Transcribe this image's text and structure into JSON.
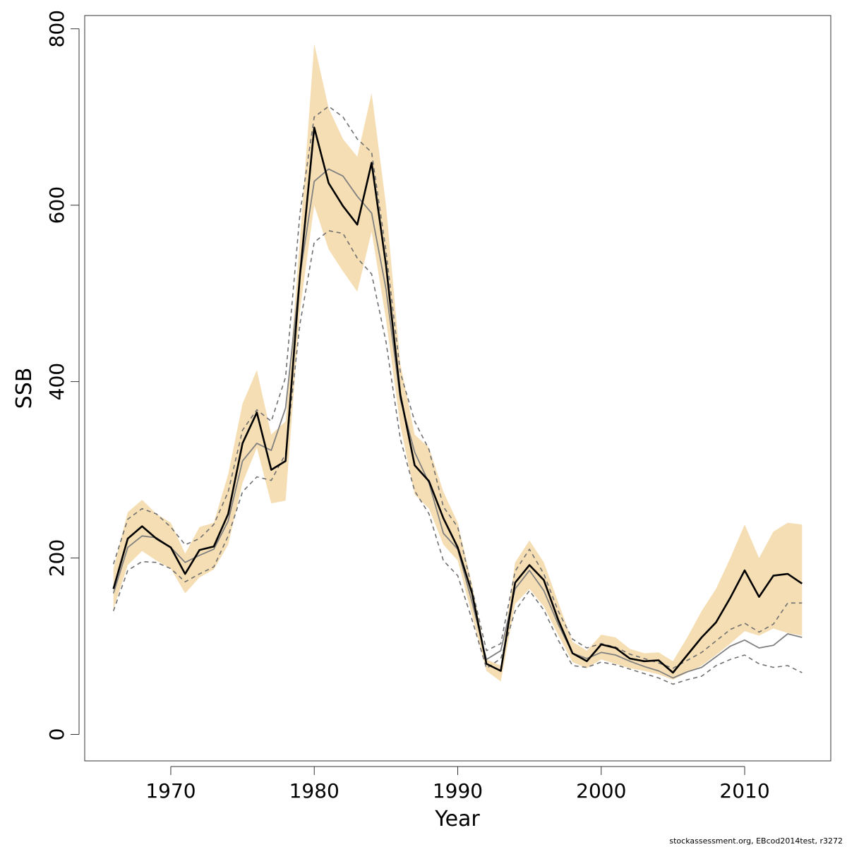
{
  "chart_data": {
    "type": "line",
    "title": "",
    "xlabel": "Year",
    "ylabel": "SSB",
    "xlim": [
      1964,
      2016
    ],
    "ylim": [
      -30,
      815
    ],
    "x_ticks": [
      1970,
      1980,
      1990,
      2000,
      2010
    ],
    "y_ticks": [
      0,
      200,
      400,
      600,
      800
    ],
    "x_tick_labels": [
      "1970",
      "1980",
      "1990",
      "2000",
      "2010"
    ],
    "y_tick_labels": [
      "0",
      "200",
      "400",
      "600",
      "800"
    ],
    "grid": false,
    "legend": "none",
    "footer": "stockassessment.org, EBcod2014test, r3272",
    "colors": {
      "band": "#f5deb3",
      "estimate": "#000000",
      "comparison": "#808080",
      "comparison_bounds": "#707070"
    },
    "x": [
      1966,
      1967,
      1968,
      1969,
      1970,
      1971,
      1972,
      1973,
      1974,
      1975,
      1976,
      1977,
      1978,
      1979,
      1980,
      1981,
      1982,
      1983,
      1984,
      1985,
      1986,
      1987,
      1988,
      1989,
      1990,
      1991,
      1992,
      1993,
      1994,
      1995,
      1996,
      1997,
      1998,
      1999,
      2000,
      2001,
      2002,
      2003,
      2004,
      2005,
      2006,
      2007,
      2008,
      2009,
      2010,
      2011,
      2012,
      2013,
      2014
    ],
    "series": [
      {
        "role": "band",
        "upper": [
          188,
          252,
          266,
          250,
          240,
          205,
          235,
          240,
          295,
          375,
          413,
          340,
          355,
          560,
          783,
          710,
          675,
          655,
          727,
          600,
          420,
          340,
          325,
          275,
          240,
          170,
          85,
          78,
          195,
          220,
          195,
          150,
          105,
          95,
          113,
          110,
          97,
          92,
          93,
          83,
          110,
          140,
          165,
          200,
          238,
          200,
          230,
          240,
          238
        ],
        "lower": [
          142,
          192,
          208,
          197,
          188,
          160,
          178,
          187,
          215,
          285,
          325,
          262,
          265,
          480,
          600,
          550,
          525,
          502,
          570,
          470,
          350,
          272,
          256,
          215,
          197,
          135,
          72,
          60,
          148,
          165,
          145,
          113,
          82,
          75,
          85,
          80,
          75,
          72,
          68,
          62,
          70,
          78,
          90,
          103,
          117,
          112,
          120,
          115,
          112
        ]
      },
      {
        "role": "estimate",
        "values": [
          165,
          222,
          236,
          222,
          212,
          182,
          209,
          213,
          250,
          330,
          365,
          300,
          310,
          520,
          688,
          625,
          599,
          578,
          648,
          532,
          385,
          305,
          287,
          245,
          212,
          160,
          80,
          72,
          172,
          192,
          175,
          130,
          92,
          83,
          102,
          98,
          86,
          83,
          84,
          70,
          90,
          110,
          127,
          155,
          186,
          156,
          180,
          182,
          171
        ]
      },
      {
        "role": "comparison",
        "values": [
          160,
          212,
          225,
          223,
          212,
          195,
          203,
          210,
          242,
          310,
          330,
          322,
          370,
          520,
          627,
          641,
          633,
          610,
          591,
          505,
          380,
          320,
          285,
          228,
          210,
          150,
          85,
          95,
          165,
          186,
          163,
          125,
          92,
          86,
          93,
          90,
          83,
          77,
          72,
          64,
          71,
          76,
          88,
          100,
          107,
          98,
          101,
          114,
          110
        ]
      },
      {
        "role": "comparison-upper",
        "values": [
          193,
          244,
          256,
          250,
          235,
          215,
          222,
          238,
          275,
          345,
          368,
          355,
          405,
          590,
          700,
          712,
          700,
          675,
          660,
          548,
          410,
          355,
          323,
          258,
          235,
          165,
          95,
          103,
          185,
          210,
          182,
          140,
          108,
          98,
          103,
          99,
          91,
          86,
          81,
          75,
          84,
          93,
          106,
          119,
          126,
          116,
          125,
          149,
          149
        ]
      },
      {
        "role": "comparison-lower",
        "values": [
          140,
          186,
          196,
          195,
          188,
          173,
          182,
          190,
          225,
          275,
          292,
          288,
          318,
          465,
          558,
          571,
          568,
          540,
          522,
          445,
          335,
          276,
          250,
          197,
          180,
          130,
          75,
          86,
          140,
          163,
          141,
          107,
          78,
          76,
          82,
          79,
          74,
          69,
          64,
          57,
          62,
          66,
          78,
          85,
          90,
          80,
          76,
          78,
          70
        ]
      }
    ]
  }
}
